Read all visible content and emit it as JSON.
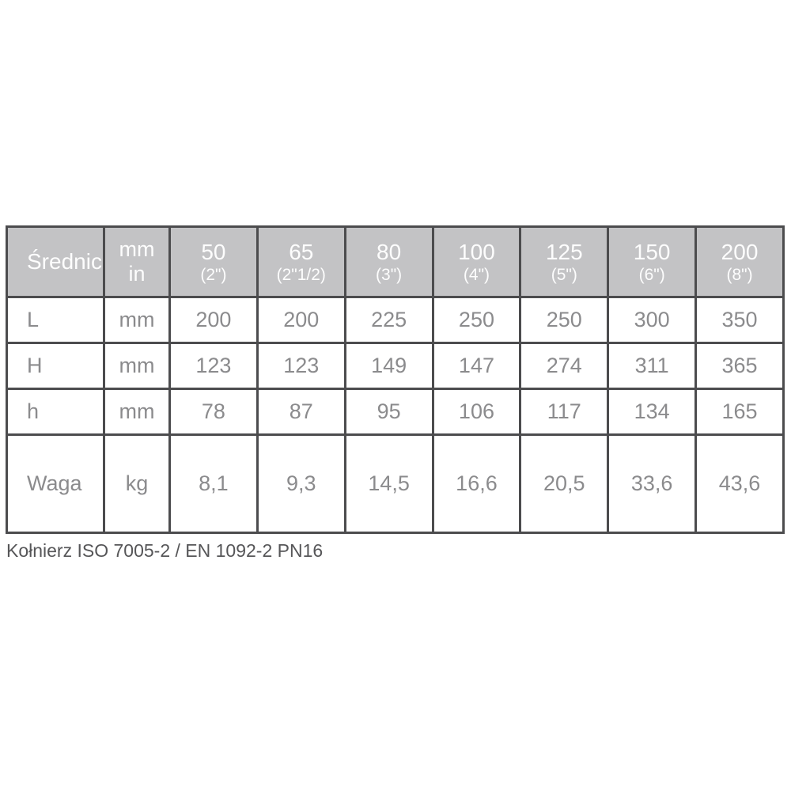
{
  "table": {
    "header": {
      "col1": "Średnica",
      "col2_line1": "mm",
      "col2_line2": "in",
      "columns": [
        {
          "size": "50",
          "inch": "(2\")"
        },
        {
          "size": "65",
          "inch": "(2\"1/2)"
        },
        {
          "size": "80",
          "inch": "(3\")"
        },
        {
          "size": "100",
          "inch": "(4\")"
        },
        {
          "size": "125",
          "inch": "(5\")"
        },
        {
          "size": "150",
          "inch": "(6\")"
        },
        {
          "size": "200",
          "inch": "(8\")"
        }
      ]
    },
    "rows": [
      {
        "label": "L",
        "unit": "mm",
        "values": [
          "200",
          "200",
          "225",
          "250",
          "250",
          "300",
          "350"
        ]
      },
      {
        "label": "H",
        "unit": "mm",
        "values": [
          "123",
          "123",
          "149",
          "147",
          "274",
          "311",
          "365"
        ]
      },
      {
        "label": "h",
        "unit": "mm",
        "values": [
          "78",
          "87",
          "95",
          "106",
          "117",
          "134",
          "165"
        ]
      },
      {
        "label": "Waga",
        "unit": "kg",
        "values": [
          "8,1",
          "9,3",
          "14,5",
          "16,6",
          "20,5",
          "33,6",
          "43,6"
        ]
      }
    ]
  },
  "caption": "Kołnierz ISO 7005-2 / EN 1092-2 PN16",
  "colors": {
    "header_bg": "#c3c3c5",
    "header_text": "#fdfdfd",
    "border": "#4c4c4e",
    "body_text": "#8b8b8d",
    "caption_text": "#565658",
    "page_bg": "#ffffff"
  }
}
